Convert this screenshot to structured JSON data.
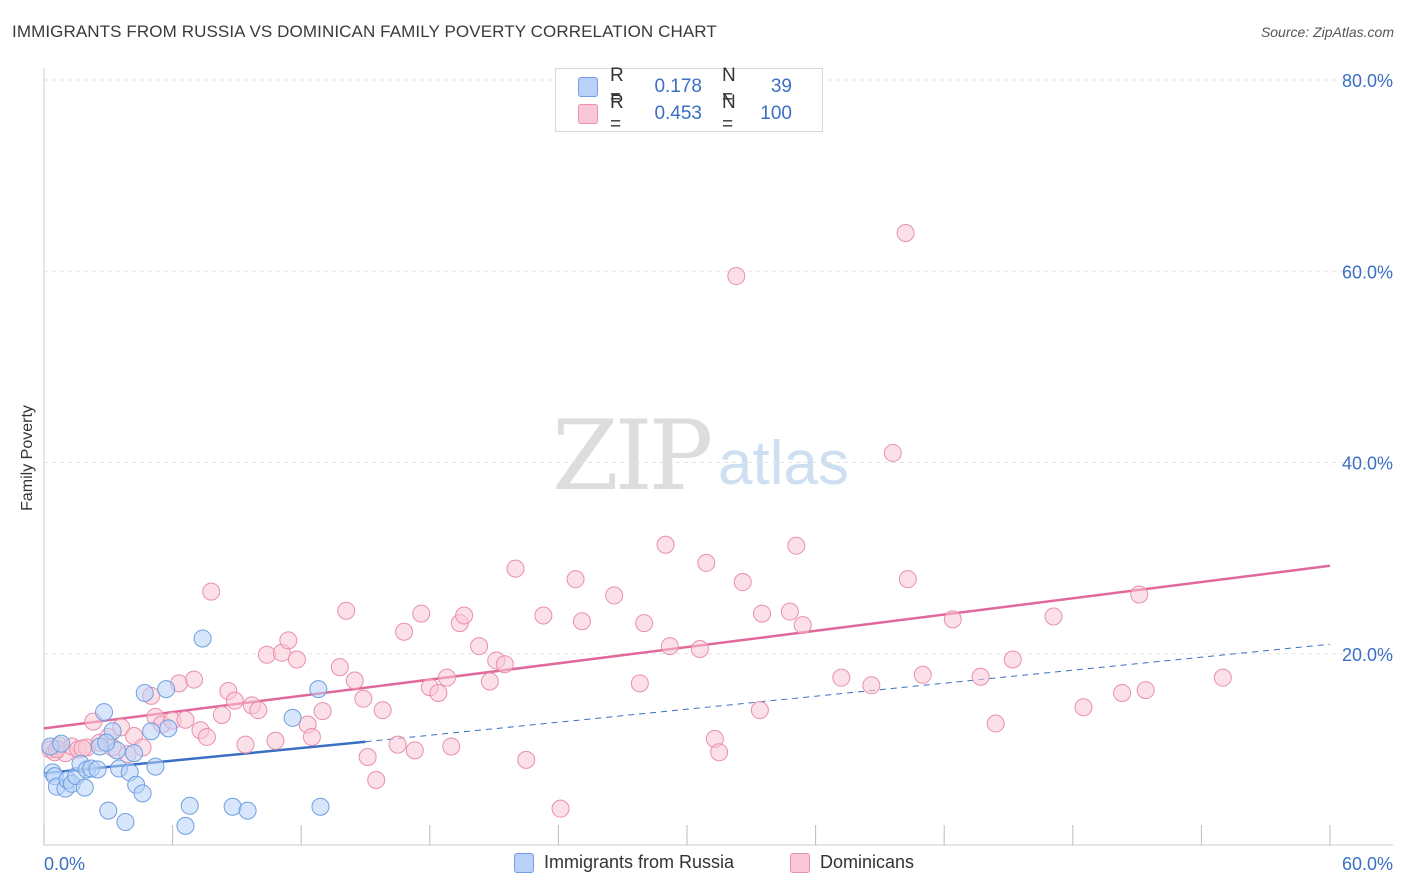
{
  "title": "IMMIGRANTS FROM RUSSIA VS DOMINICAN FAMILY POVERTY CORRELATION CHART",
  "source": "Source: ZipAtlas.com",
  "watermark": {
    "part1": "ZIP",
    "part2": "atlas"
  },
  "legend": {
    "rows": [
      {
        "r_label": "R =",
        "r_value": "0.178",
        "n_label": "N =",
        "n_value": "39"
      },
      {
        "r_label": "R =",
        "r_value": "0.453",
        "n_label": "N =",
        "n_value": "100"
      }
    ]
  },
  "colors": {
    "russia_fill": "#b7d1f7",
    "russia_stroke": "#6f9fe0",
    "russia_line": "#3a6fc4",
    "dominican_fill": "#f9c7d6",
    "dominican_stroke": "#ea8fac",
    "dominican_line": "#e0689a",
    "grid": "#e3e3e3",
    "axis_text": "#3a6fc4"
  },
  "chart_data": {
    "type": "scatter",
    "title": "IMMIGRANTS FROM RUSSIA VS DOMINICAN FAMILY POVERTY CORRELATION CHART",
    "xlabel": "",
    "ylabel": "Family Poverty",
    "xlim": [
      0,
      60
    ],
    "ylim": [
      0,
      80
    ],
    "x_ticks": [
      "0.0%",
      "60.0%"
    ],
    "y_ticks": [
      "20.0%",
      "40.0%",
      "60.0%",
      "80.0%"
    ],
    "y_tick_values": [
      20,
      40,
      60,
      80
    ],
    "legend_position": "top-center",
    "series": [
      {
        "name": "Immigrants from Russia",
        "r": 0.178,
        "n": 39,
        "trend": {
          "x0": 0,
          "y0": 7.5,
          "x1": 15,
          "y1": 10.8,
          "dashed_to_x": 60,
          "dashed_to_y": 21.0
        },
        "points": [
          [
            0.3,
            10.3
          ],
          [
            0.4,
            7.6
          ],
          [
            0.5,
            7.2
          ],
          [
            0.6,
            6.1
          ],
          [
            0.8,
            10.6
          ],
          [
            1.0,
            5.9
          ],
          [
            1.1,
            6.8
          ],
          [
            1.3,
            6.4
          ],
          [
            1.5,
            7.2
          ],
          [
            1.7,
            8.5
          ],
          [
            1.9,
            6.0
          ],
          [
            2.0,
            7.9
          ],
          [
            2.2,
            8.0
          ],
          [
            2.5,
            7.9
          ],
          [
            2.8,
            13.9
          ],
          [
            3.0,
            3.6
          ],
          [
            3.2,
            11.9
          ],
          [
            3.4,
            9.9
          ],
          [
            3.5,
            8.0
          ],
          [
            3.8,
            2.4
          ],
          [
            4.0,
            7.6
          ],
          [
            4.2,
            9.6
          ],
          [
            4.3,
            6.3
          ],
          [
            4.6,
            5.4
          ],
          [
            4.7,
            15.9
          ],
          [
            5.0,
            11.9
          ],
          [
            5.2,
            8.2
          ],
          [
            5.7,
            16.3
          ],
          [
            5.8,
            12.2
          ],
          [
            6.6,
            2.0
          ],
          [
            6.8,
            4.1
          ],
          [
            7.4,
            21.6
          ],
          [
            8.8,
            4.0
          ],
          [
            9.5,
            3.6
          ],
          [
            11.6,
            13.3
          ],
          [
            12.8,
            16.3
          ],
          [
            12.9,
            4.0
          ],
          [
            2.6,
            10.3
          ],
          [
            2.9,
            10.7
          ]
        ]
      },
      {
        "name": "Dominicans",
        "r": 0.453,
        "n": 100,
        "trend": {
          "x0": 0,
          "y0": 12.2,
          "x1": 60,
          "y1": 29.2
        },
        "points": [
          [
            0.3,
            10.0
          ],
          [
            0.5,
            9.7
          ],
          [
            0.7,
            10.4
          ],
          [
            1.0,
            9.6
          ],
          [
            1.3,
            10.3
          ],
          [
            1.6,
            10.0
          ],
          [
            2.0,
            10.2
          ],
          [
            2.3,
            12.9
          ],
          [
            2.6,
            10.7
          ],
          [
            3.0,
            11.3
          ],
          [
            3.2,
            10.2
          ],
          [
            3.6,
            12.3
          ],
          [
            3.9,
            9.5
          ],
          [
            4.2,
            11.4
          ],
          [
            4.6,
            10.2
          ],
          [
            5.0,
            15.6
          ],
          [
            5.2,
            13.4
          ],
          [
            5.5,
            12.6
          ],
          [
            6.0,
            13.0
          ],
          [
            6.3,
            16.9
          ],
          [
            6.6,
            13.1
          ],
          [
            7.0,
            17.3
          ],
          [
            7.3,
            12.0
          ],
          [
            7.6,
            11.3
          ],
          [
            7.8,
            26.5
          ],
          [
            8.3,
            13.6
          ],
          [
            8.6,
            16.1
          ],
          [
            8.9,
            15.1
          ],
          [
            9.4,
            10.5
          ],
          [
            9.7,
            14.6
          ],
          [
            10.0,
            14.1
          ],
          [
            10.4,
            19.9
          ],
          [
            10.8,
            10.9
          ],
          [
            11.1,
            20.1
          ],
          [
            11.4,
            21.4
          ],
          [
            11.8,
            19.4
          ],
          [
            12.3,
            12.6
          ],
          [
            12.5,
            11.3
          ],
          [
            13.0,
            14.0
          ],
          [
            13.8,
            18.6
          ],
          [
            14.1,
            24.5
          ],
          [
            14.5,
            17.2
          ],
          [
            14.9,
            15.3
          ],
          [
            15.1,
            9.2
          ],
          [
            15.5,
            6.8
          ],
          [
            15.8,
            14.1
          ],
          [
            16.5,
            10.5
          ],
          [
            16.8,
            22.3
          ],
          [
            17.3,
            9.9
          ],
          [
            17.6,
            24.2
          ],
          [
            18.0,
            16.5
          ],
          [
            18.4,
            15.9
          ],
          [
            18.8,
            17.5
          ],
          [
            19.0,
            10.3
          ],
          [
            19.4,
            23.2
          ],
          [
            19.6,
            24.0
          ],
          [
            20.3,
            20.8
          ],
          [
            20.8,
            17.1
          ],
          [
            21.1,
            19.3
          ],
          [
            21.5,
            18.9
          ],
          [
            22.0,
            28.9
          ],
          [
            22.5,
            8.9
          ],
          [
            23.3,
            24.0
          ],
          [
            24.1,
            3.8
          ],
          [
            24.8,
            27.8
          ],
          [
            25.1,
            23.4
          ],
          [
            26.6,
            26.1
          ],
          [
            27.8,
            16.9
          ],
          [
            28.0,
            23.2
          ],
          [
            29.0,
            31.4
          ],
          [
            29.2,
            20.8
          ],
          [
            30.6,
            20.5
          ],
          [
            30.9,
            29.5
          ],
          [
            31.3,
            11.1
          ],
          [
            31.5,
            9.7
          ],
          [
            32.3,
            59.5
          ],
          [
            32.6,
            27.5
          ],
          [
            33.4,
            14.1
          ],
          [
            33.5,
            24.2
          ],
          [
            34.8,
            24.4
          ],
          [
            35.1,
            31.3
          ],
          [
            35.4,
            23.0
          ],
          [
            37.2,
            17.5
          ],
          [
            38.6,
            16.7
          ],
          [
            39.6,
            41.0
          ],
          [
            40.2,
            64.0
          ],
          [
            40.3,
            27.8
          ],
          [
            41.0,
            17.8
          ],
          [
            42.4,
            23.6
          ],
          [
            43.7,
            17.6
          ],
          [
            44.4,
            12.7
          ],
          [
            45.2,
            19.4
          ],
          [
            47.1,
            23.9
          ],
          [
            48.5,
            14.4
          ],
          [
            50.3,
            15.9
          ],
          [
            51.1,
            26.2
          ],
          [
            51.4,
            16.2
          ],
          [
            55.0,
            17.5
          ],
          [
            0.6,
            10.0
          ],
          [
            1.8,
            10.1
          ]
        ]
      }
    ]
  },
  "bottom_legend": {
    "series1": "Immigrants from Russia",
    "series2": "Dominicans"
  },
  "axis": {
    "x_min_label": "0.0%",
    "x_max_label": "60.0%"
  }
}
